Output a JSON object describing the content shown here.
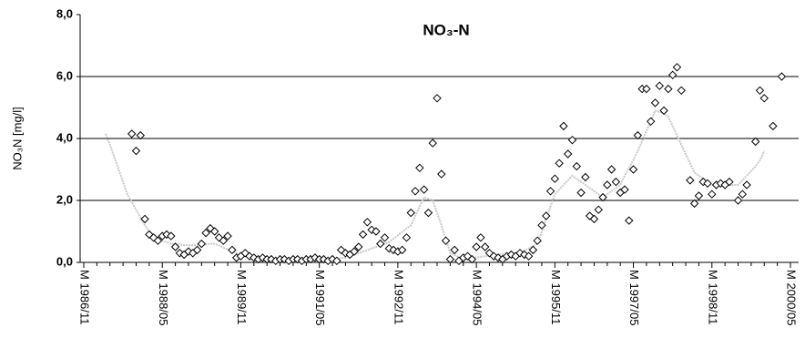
{
  "chart_data": {
    "type": "scatter",
    "title": "NO₃-N",
    "y_label": "NO₃N [mg/l]",
    "categories": [
      "M 1986/11",
      null,
      null,
      null,
      null,
      null,
      null,
      null,
      null,
      null,
      null,
      null,
      null,
      null,
      null,
      null,
      null,
      null,
      "M 1988/05",
      null,
      null,
      null,
      null,
      null,
      null,
      null,
      null,
      null,
      null,
      null,
      null,
      null,
      null,
      null,
      null,
      null,
      "M 1989/11",
      null,
      null,
      null,
      null,
      null,
      null,
      null,
      null,
      null,
      null,
      null,
      null,
      null,
      null,
      null,
      null,
      null,
      "M 1991/05",
      null,
      null,
      null,
      null,
      null,
      null,
      null,
      null,
      null,
      null,
      null,
      null,
      null,
      null,
      null,
      null,
      null,
      "M 1992/11",
      null,
      null,
      null,
      null,
      null,
      null,
      null,
      null,
      null,
      null,
      null,
      null,
      null,
      null,
      null,
      null,
      null,
      "M 1994/05",
      null,
      null,
      null,
      null,
      null,
      null,
      null,
      null,
      null,
      null,
      null,
      null,
      null,
      null,
      null,
      null,
      null,
      "M 1995/11",
      null,
      null,
      null,
      null,
      null,
      null,
      null,
      null,
      null,
      null,
      null,
      null,
      null,
      null,
      null,
      null,
      null,
      "M 1997/05",
      null,
      null,
      null,
      null,
      null,
      null,
      null,
      null,
      null,
      null,
      null,
      null,
      null,
      null,
      null,
      null,
      null,
      "M 1998/11",
      null,
      null,
      null,
      null,
      null,
      null,
      null,
      null,
      null,
      null,
      null,
      null,
      null,
      null,
      null,
      null,
      null,
      "M 2000/05"
    ],
    "series": [
      {
        "marker": "diamond",
        "color": "#000000",
        "values": [
          null,
          null,
          null,
          null,
          null,
          null,
          null,
          null,
          null,
          null,
          null,
          4.15,
          3.6,
          4.1,
          1.4,
          0.9,
          0.8,
          0.7,
          0.85,
          0.9,
          0.85,
          0.5,
          0.3,
          0.25,
          0.35,
          0.3,
          0.4,
          0.6,
          0.95,
          1.1,
          1.0,
          0.8,
          0.7,
          0.85,
          0.4,
          0.15,
          0.2,
          0.3,
          0.2,
          0.15,
          0.1,
          0.15,
          0.1,
          0.1,
          0.05,
          0.1,
          0.1,
          0.05,
          0.1,
          0.1,
          0.05,
          0.1,
          0.1,
          0.15,
          0.1,
          0.1,
          0.05,
          0.1,
          0.05,
          0.4,
          0.3,
          0.25,
          0.35,
          0.5,
          0.9,
          1.3,
          1.05,
          1.0,
          0.6,
          0.8,
          0.45,
          0.4,
          0.35,
          0.4,
          0.8,
          1.6,
          2.3,
          3.05,
          2.35,
          1.6,
          3.85,
          5.3,
          2.85,
          0.7,
          0.1,
          0.4,
          0.05,
          0.15,
          0.2,
          0.1,
          0.5,
          0.8,
          0.5,
          0.3,
          0.2,
          0.15,
          0.1,
          0.2,
          0.25,
          0.2,
          0.3,
          0.25,
          0.2,
          0.4,
          0.7,
          1.2,
          1.5,
          2.3,
          2.7,
          3.2,
          4.4,
          3.5,
          3.95,
          3.1,
          2.25,
          2.75,
          1.5,
          1.4,
          1.7,
          2.1,
          2.5,
          3.0,
          2.6,
          2.25,
          2.35,
          1.35,
          3.0,
          4.1,
          5.6,
          5.6,
          4.55,
          5.15,
          5.7,
          4.9,
          5.6,
          6.05,
          6.3,
          5.55,
          null,
          2.65,
          1.9,
          2.15,
          2.6,
          2.55,
          2.2,
          2.5,
          2.55,
          2.5,
          2.6,
          null,
          2.0,
          2.2,
          2.5,
          null,
          3.9,
          5.55,
          5.3,
          null,
          4.4,
          null,
          6.0,
          null,
          null
        ]
      },
      {
        "type": "line",
        "color": "#c8c8c8",
        "values": [
          null,
          null,
          null,
          null,
          null,
          4.15,
          3.8,
          3.4,
          3.0,
          2.6,
          2.2,
          1.95,
          1.7,
          1.45,
          1.2,
          1.0,
          0.9,
          0.8,
          0.7,
          0.65,
          0.6,
          0.6,
          0.58,
          0.56,
          0.55,
          0.55,
          0.56,
          0.57,
          0.58,
          0.6,
          0.6,
          0.55,
          0.48,
          0.42,
          0.36,
          0.3,
          0.26,
          0.22,
          0.19,
          0.17,
          0.15,
          0.14,
          0.13,
          0.12,
          0.12,
          0.11,
          0.1,
          0.1,
          0.1,
          0.1,
          0.1,
          0.1,
          0.1,
          0.1,
          0.1,
          0.1,
          0.11,
          0.12,
          0.13,
          0.14,
          0.15,
          0.2,
          0.25,
          0.3,
          0.35,
          0.4,
          0.45,
          0.5,
          0.55,
          0.6,
          0.65,
          0.76,
          0.87,
          0.98,
          1.09,
          1.2,
          1.5,
          1.8,
          2.1,
          2.05,
          2.0,
          1.6,
          1.2,
          0.75,
          0.3,
          0.23,
          0.17,
          0.1,
          0.12,
          0.14,
          0.16,
          0.18,
          0.2,
          0.21,
          0.23,
          0.25,
          0.26,
          0.27,
          0.28,
          0.29,
          0.3,
          0.38,
          0.45,
          0.53,
          0.6,
          1.0,
          1.4,
          1.8,
          2.2,
          2.35,
          2.5,
          2.65,
          2.8,
          2.7,
          2.6,
          2.5,
          2.4,
          2.3,
          2.2,
          2.1,
          2.2,
          2.3,
          2.4,
          2.5,
          2.8,
          3.05,
          3.3,
          3.6,
          3.9,
          4.25,
          4.55,
          4.9,
          4.85,
          4.8,
          4.7,
          4.4,
          4.1,
          3.8,
          3.5,
          3.2,
          2.9,
          2.8,
          2.7,
          2.6,
          2.5,
          2.5,
          2.5,
          2.5,
          2.5,
          2.5,
          2.5,
          2.65,
          2.8,
          2.95,
          3.1,
          3.3,
          3.6,
          null,
          null,
          null,
          null,
          null,
          null
        ]
      }
    ],
    "ylim": [
      0,
      8
    ],
    "yticks": [
      {
        "value": 0,
        "label": "0,0"
      },
      {
        "value": 2,
        "label": "2,0"
      },
      {
        "value": 4,
        "label": "4,0"
      },
      {
        "value": 6,
        "label": "6,0"
      },
      {
        "value": 8,
        "label": "8,0"
      }
    ],
    "grid": true
  }
}
